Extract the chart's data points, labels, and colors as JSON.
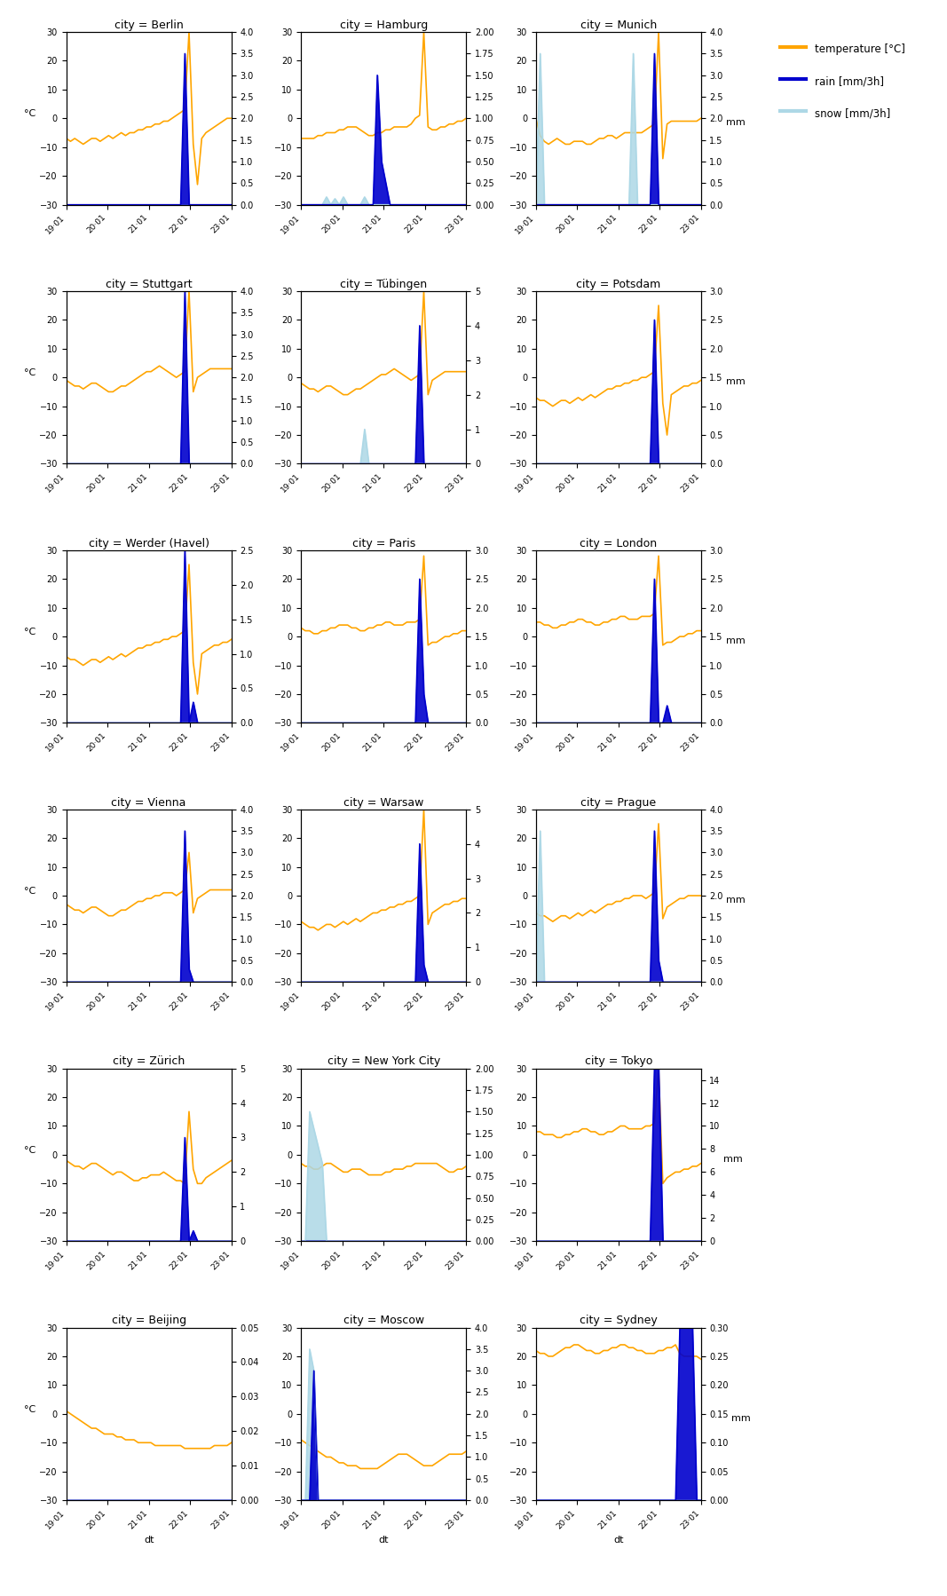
{
  "cities": [
    "Berlin",
    "Hamburg",
    "Munich",
    "Stuttgart",
    "Tübingen",
    "Potsdam",
    "Werder (Havel)",
    "Paris",
    "London",
    "Vienna",
    "Warsaw",
    "Prague",
    "Zürich",
    "New York City",
    "Tokyo",
    "Beijing",
    "Moscow",
    "Sydney"
  ],
  "nrows": 6,
  "ncols": 3,
  "ylim_temp": [
    -30,
    30
  ],
  "temp_color": "#FFA500",
  "rain_color": "#0000CD",
  "snow_color": "#ADD8E6",
  "xlabel": "dt",
  "ylabel_left": "°C",
  "ylabel_right": "mm",
  "title_prefix": "city = ",
  "legend_labels": [
    "temperature [°C]",
    "rain [mm/3h]",
    "snow [mm/3h]"
  ],
  "figsize": [
    10.67,
    17.98
  ],
  "dpi": 100,
  "tick_labels": [
    "19·01",
    "20·01",
    "21·01",
    "22·01",
    "23·01"
  ],
  "right_ylims": {
    "Berlin": 4.0,
    "Hamburg": 2.0,
    "Munich": 4.0,
    "Stuttgart": 4.0,
    "Tübingen": 5.0,
    "Potsdam": 3.0,
    "Werder (Havel)": 2.5,
    "Paris": 3.0,
    "London": 3.0,
    "Vienna": 4.0,
    "Warsaw": 5.0,
    "Prague": 4.0,
    "Zürich": 5.0,
    "New York City": 2.0,
    "Tokyo": 15.0,
    "Beijing": 0.05,
    "Moscow": 4.0,
    "Sydney": 0.3
  }
}
